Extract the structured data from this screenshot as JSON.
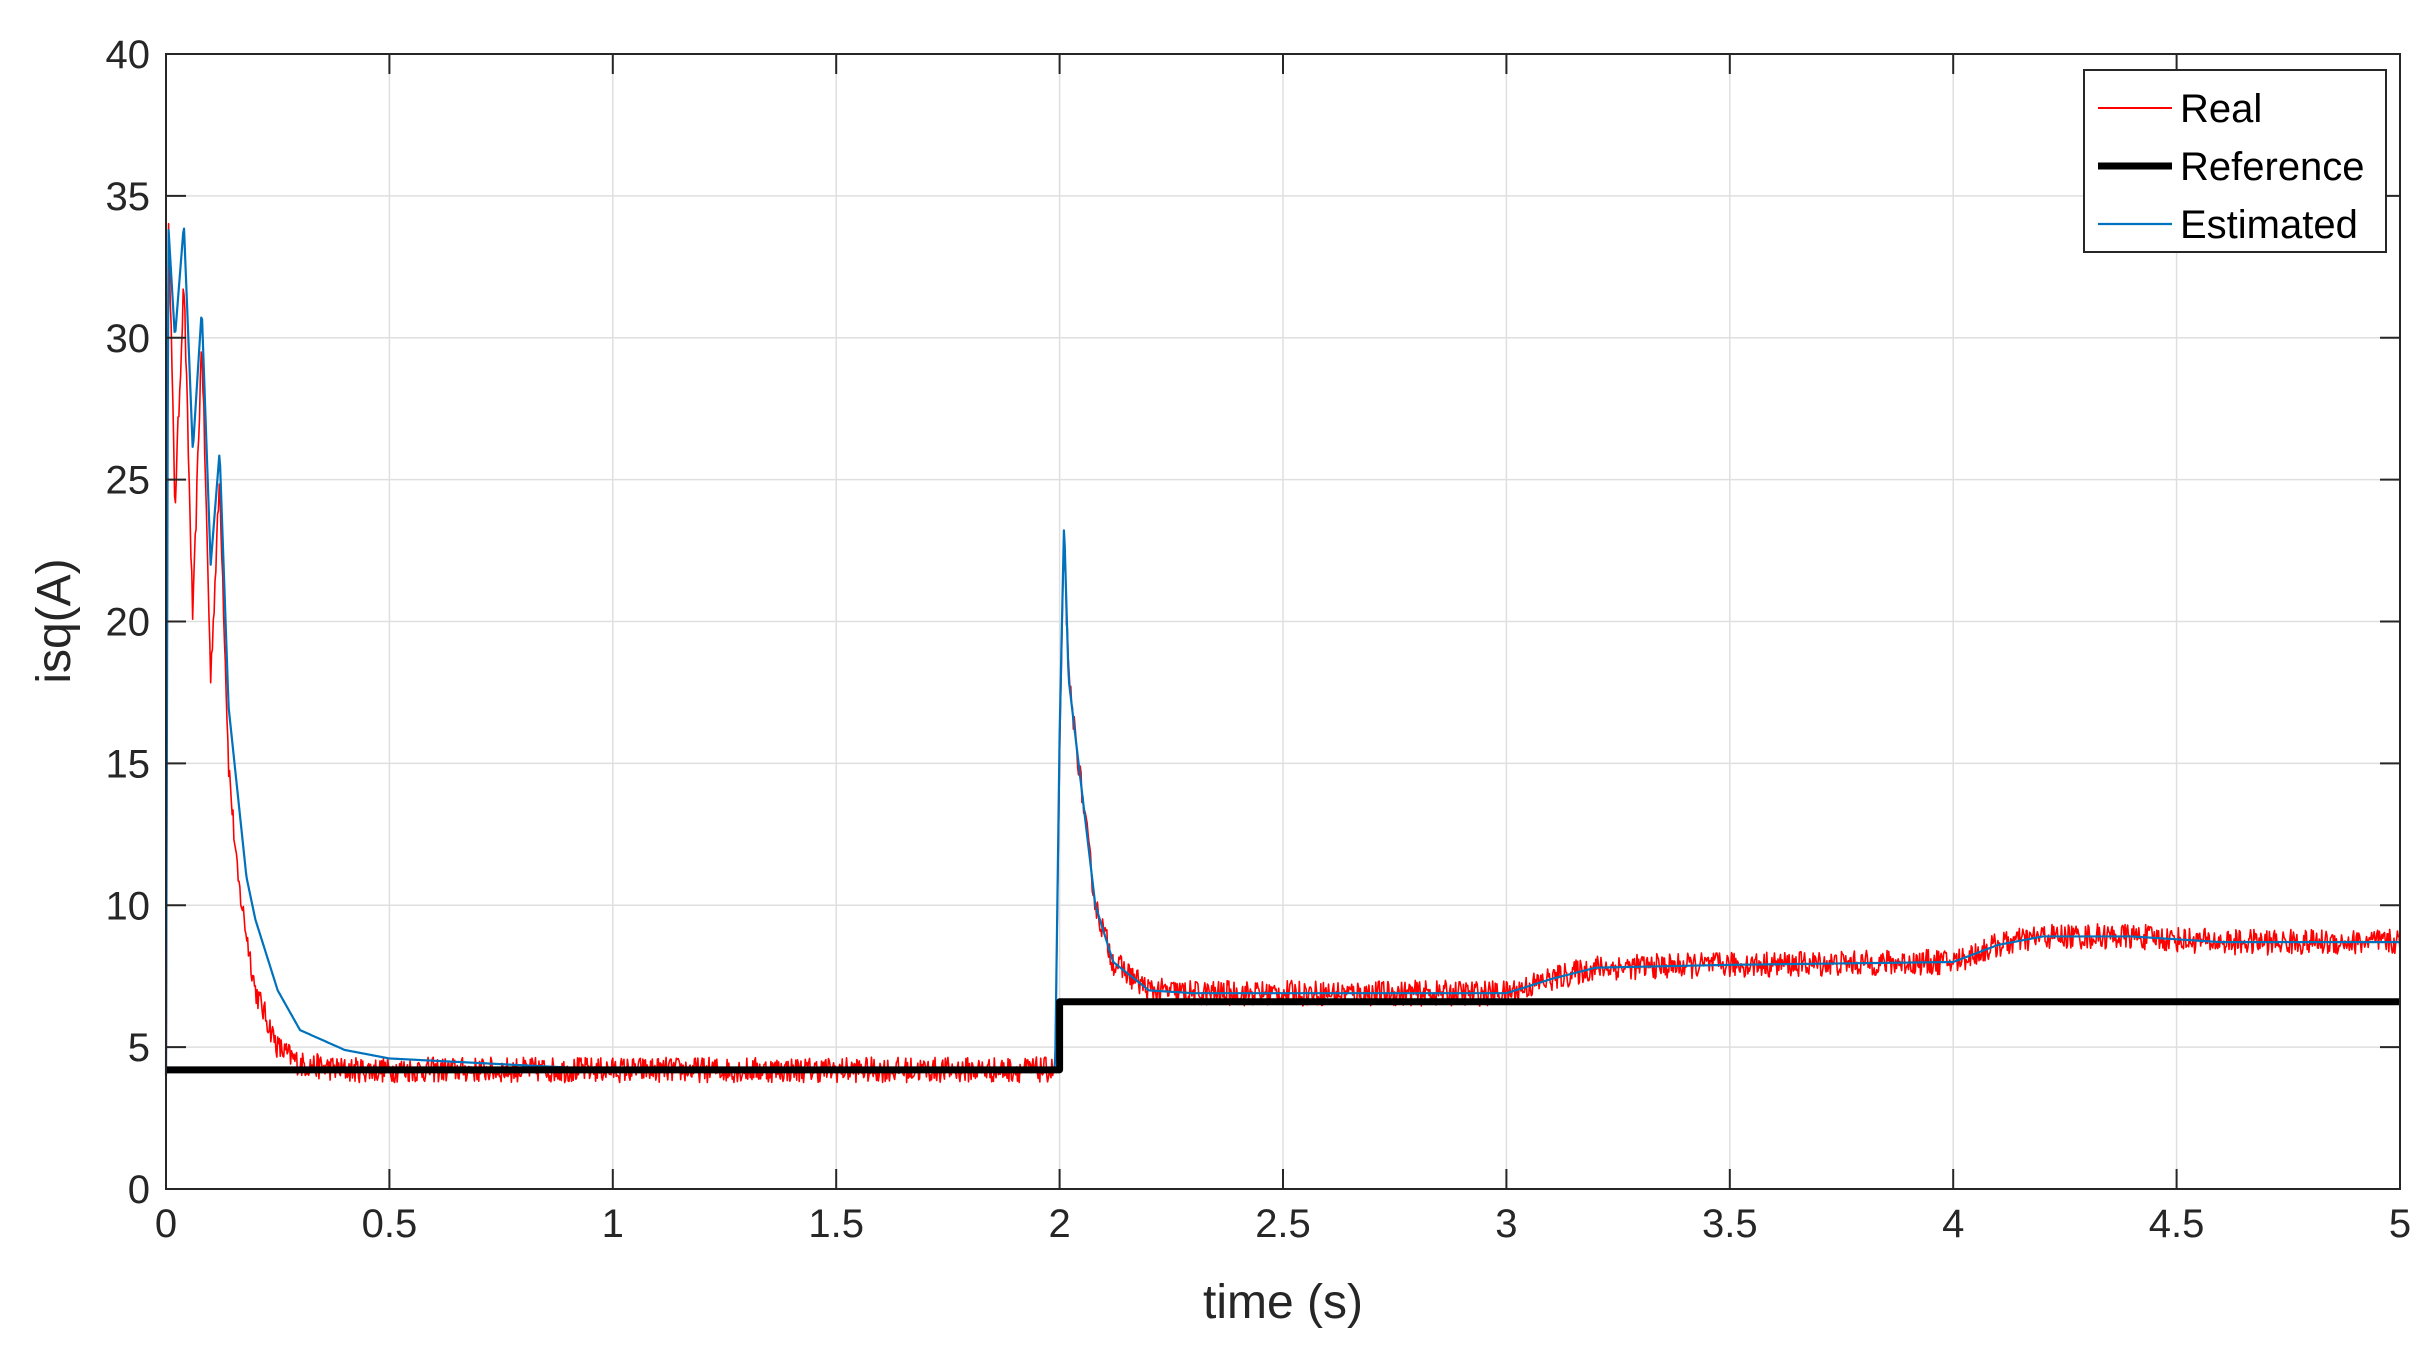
{
  "chart_data": {
    "type": "line",
    "xlabel": "time (s)",
    "ylabel": "isq(A)",
    "xlim": [
      0,
      5
    ],
    "ylim": [
      0,
      40
    ],
    "xticks": [
      0,
      0.5,
      1,
      1.5,
      2,
      2.5,
      3,
      3.5,
      4,
      4.5,
      5
    ],
    "xtick_labels": [
      "0",
      "0.5",
      "1",
      "1.5",
      "2",
      "2.5",
      "3",
      "3.5",
      "4",
      "4.5",
      "5"
    ],
    "yticks": [
      0,
      5,
      10,
      15,
      20,
      25,
      30,
      35,
      40
    ],
    "ytick_labels": [
      "0",
      "5",
      "10",
      "15",
      "20",
      "25",
      "30",
      "35",
      "40"
    ],
    "grid": true,
    "legend_position": "top-right",
    "series": [
      {
        "name": "Real",
        "color": "#ff0000",
        "x": [
          0,
          0.005,
          0.02,
          0.04,
          0.06,
          0.08,
          0.1,
          0.12,
          0.14,
          0.16,
          0.18,
          0.2,
          0.25,
          0.3,
          0.4,
          0.5,
          1.0,
          1.5,
          1.99,
          2.0,
          2.01,
          2.02,
          2.05,
          2.08,
          2.12,
          2.2,
          2.3,
          2.5,
          3.0,
          3.1,
          3.2,
          3.5,
          4.0,
          4.1,
          4.2,
          4.4,
          4.6,
          5.0
        ],
        "y": [
          0.5,
          35,
          24,
          32,
          20,
          30,
          18,
          25,
          15,
          11,
          9,
          7,
          5,
          4.4,
          4.2,
          4.2,
          4.2,
          4.2,
          4.2,
          15,
          23,
          18,
          14,
          10,
          8,
          7,
          6.9,
          6.9,
          6.9,
          7.4,
          7.8,
          7.9,
          8.0,
          8.6,
          8.9,
          8.9,
          8.7,
          8.7
        ]
      },
      {
        "name": "Reference",
        "color": "#000000",
        "x": [
          0,
          2,
          2,
          5
        ],
        "y": [
          4.2,
          4.2,
          6.6,
          6.6
        ]
      },
      {
        "name": "Estimated",
        "color": "#0072bd",
        "x": [
          0,
          0.005,
          0.02,
          0.04,
          0.06,
          0.08,
          0.1,
          0.12,
          0.14,
          0.16,
          0.18,
          0.2,
          0.25,
          0.3,
          0.4,
          0.5,
          1.0,
          1.5,
          1.99,
          2.0,
          2.01,
          2.02,
          2.05,
          2.08,
          2.12,
          2.2,
          2.3,
          2.5,
          3.0,
          3.1,
          3.2,
          3.5,
          4.0,
          4.1,
          4.2,
          4.4,
          4.6,
          5.0
        ],
        "y": [
          4,
          34,
          30,
          34,
          26,
          31,
          22,
          26,
          17,
          14,
          11,
          9.5,
          7,
          5.6,
          4.9,
          4.6,
          4.2,
          4.2,
          4.2,
          16,
          23.5,
          18,
          14,
          10,
          8,
          7,
          6.9,
          6.9,
          6.9,
          7.4,
          7.8,
          7.9,
          8.0,
          8.6,
          8.9,
          8.9,
          8.7,
          8.7
        ]
      }
    ]
  }
}
